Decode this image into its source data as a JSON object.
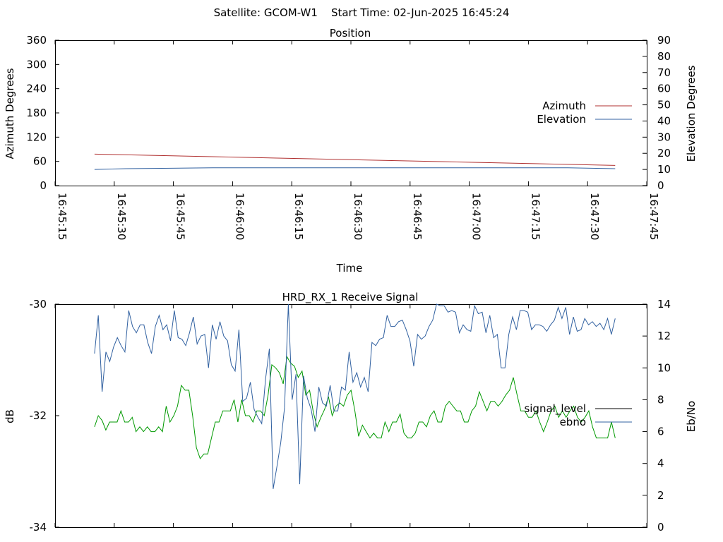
{
  "header": {
    "text": "Satellite: GCOM-W1    Start Time: 02-Jun-2025 16:45:24"
  },
  "chart_data": [
    {
      "type": "line",
      "title": "Position",
      "xlabel": "Time",
      "ylabel_left": "Azimuth Degrees",
      "ylabel_right": "Elevation Degrees",
      "x_ticks": [
        "16:45:15",
        "16:45:30",
        "16:45:45",
        "16:46:00",
        "16:46:15",
        "16:46:30",
        "16:46:45",
        "16:47:00",
        "16:47:15",
        "16:47:30",
        "16:47:45"
      ],
      "y_left_ticks": [
        "0",
        "60",
        "120",
        "180",
        "240",
        "300",
        "360"
      ],
      "y_right_ticks": [
        "0",
        "10",
        "20",
        "30",
        "40",
        "50",
        "60",
        "70",
        "80",
        "90"
      ],
      "y_left_range": [
        0,
        360
      ],
      "y_right_range": [
        0,
        90
      ],
      "grid": false,
      "legend_position": "right",
      "series": [
        {
          "name": "Azimuth",
          "axis": "left",
          "color": "#b03030",
          "x_times": [
            "16:45:25",
            "16:47:37"
          ],
          "values": [
            78,
            50
          ]
        },
        {
          "name": "Elevation",
          "axis": "right",
          "color": "#3060a0",
          "x_times": [
            "16:45:25",
            "16:45:33",
            "16:45:55",
            "16:47:25",
            "16:47:37"
          ],
          "values": [
            10,
            10.5,
            11,
            11,
            10.5
          ]
        }
      ]
    },
    {
      "type": "line",
      "title": "HRD_RX_1 Receive Signal",
      "ylabel_left": "dB",
      "ylabel_right": "Eb/No",
      "y_left_ticks": [
        "-30",
        "-32",
        "-34"
      ],
      "y_right_ticks": [
        "0",
        "2",
        "4",
        "6",
        "8",
        "10",
        "12",
        "14"
      ],
      "y_left_range": [
        -34,
        -30
      ],
      "y_right_range": [
        0,
        14
      ],
      "grid": false,
      "legend_position": "right",
      "series": [
        {
          "name": "signal_level",
          "axis": "right",
          "color": "#009900",
          "values": [
            6.3,
            7.0,
            6.7,
            6.1,
            6.6,
            6.6,
            6.6,
            7.3,
            6.6,
            6.6,
            6.9,
            6.0,
            6.3,
            6.0,
            6.3,
            6.0,
            6.0,
            6.3,
            6.0,
            7.6,
            6.6,
            7.0,
            7.6,
            8.9,
            8.6,
            8.6,
            7.0,
            5.0,
            4.3,
            4.6,
            4.6,
            5.6,
            6.6,
            6.6,
            7.3,
            7.3,
            7.3,
            8.0,
            6.6,
            8.0,
            7.0,
            7.0,
            6.6,
            7.3,
            7.3,
            7.0,
            8.3,
            10.2,
            10.0,
            9.7,
            9.0,
            10.7,
            10.3,
            10.1,
            9.4,
            9.8,
            8.3,
            8.6,
            7.2,
            6.3,
            6.9,
            7.4,
            8.2,
            7.0,
            7.6,
            7.8,
            7.6,
            8.3,
            8.6,
            7.3,
            5.7,
            6.4,
            6.0,
            5.6,
            5.9,
            5.6,
            5.6,
            6.6,
            6.0,
            6.6,
            6.6,
            7.1,
            5.9,
            5.6,
            5.6,
            5.9,
            6.6,
            6.6,
            6.3,
            7.0,
            7.3,
            6.6,
            6.6,
            7.6,
            7.9,
            7.6,
            7.3,
            7.3,
            6.6,
            6.6,
            7.3,
            7.6,
            8.5,
            7.9,
            7.3,
            7.9,
            7.9,
            7.6,
            7.9,
            8.3,
            8.6,
            9.4,
            8.3,
            7.3,
            7.3,
            6.9,
            6.9,
            7.3,
            6.6,
            6.0,
            6.6,
            7.3,
            7.6,
            6.9,
            7.3,
            6.9,
            7.3,
            7.6,
            6.9,
            6.6,
            6.9,
            7.3,
            6.3,
            5.6,
            5.6,
            5.6,
            5.6,
            6.6,
            5.6
          ]
        },
        {
          "name": "ebno",
          "axis": "right",
          "color": "#3060a0",
          "values": [
            10.9,
            13.3,
            8.5,
            11.0,
            10.4,
            11.3,
            11.9,
            11.4,
            11.0,
            13.6,
            12.6,
            12.2,
            12.7,
            12.7,
            11.6,
            10.9,
            12.6,
            13.3,
            12.4,
            12.7,
            11.7,
            13.6,
            11.9,
            11.8,
            11.4,
            12.2,
            13.2,
            11.5,
            12.0,
            12.1,
            10.0,
            12.7,
            11.8,
            12.9,
            12.0,
            11.7,
            10.2,
            9.8,
            12.4,
            7.9,
            8.1,
            9.1,
            7.4,
            6.9,
            6.5,
            9.3,
            11.2,
            2.4,
            3.8,
            5.3,
            7.5,
            14.0,
            8.0,
            9.6,
            2.7,
            9.5,
            8.1,
            7.4,
            6.0,
            8.8,
            7.8,
            7.6,
            8.9,
            7.3,
            7.3,
            8.8,
            8.6,
            11.0,
            9.1,
            9.7,
            8.8,
            9.4,
            8.5,
            11.6,
            11.4,
            11.8,
            11.9,
            13.3,
            12.6,
            12.6,
            12.9,
            13.0,
            12.4,
            11.7,
            10.1,
            12.1,
            11.8,
            12.0,
            12.6,
            13.0,
            14.0,
            13.9,
            13.9,
            13.5,
            13.6,
            13.5,
            12.2,
            12.7,
            12.4,
            12.3,
            13.9,
            13.4,
            13.5,
            12.2,
            13.3,
            11.9,
            12.1,
            10.0,
            10.0,
            12.1,
            13.2,
            12.4,
            13.6,
            13.6,
            13.5,
            12.4,
            12.7,
            12.7,
            12.6,
            12.3,
            12.7,
            13.0,
            13.8,
            13.1,
            13.8,
            12.1,
            13.2,
            12.3,
            12.4,
            13.1,
            12.7,
            12.9,
            12.6,
            12.8,
            12.4,
            13.1,
            12.1,
            13.1
          ]
        }
      ]
    }
  ]
}
